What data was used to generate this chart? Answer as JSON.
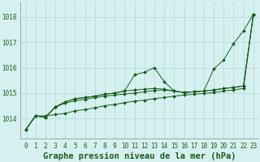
{
  "xlabel": "Graphe pression niveau de la mer (hPa)",
  "xlim": [
    -0.5,
    23.5
  ],
  "ylim": [
    1013.2,
    1018.6
  ],
  "yticks": [
    1014,
    1015,
    1016,
    1017,
    1018
  ],
  "xticks": [
    0,
    1,
    2,
    3,
    4,
    5,
    6,
    7,
    8,
    9,
    10,
    11,
    12,
    13,
    14,
    15,
    16,
    17,
    18,
    19,
    20,
    21,
    22,
    23
  ],
  "background_color": "#d6f0f0",
  "grid_color": "#afd8d8",
  "line_color": "#1a5c1a",
  "series": [
    [
      1013.55,
      1014.1,
      1014.1,
      1014.15,
      1014.2,
      1014.3,
      1014.35,
      1014.42,
      1014.5,
      1014.55,
      1014.62,
      1014.68,
      1014.72,
      1014.78,
      1014.82,
      1014.88,
      1014.92,
      1014.95,
      1014.98,
      1015.02,
      1015.08,
      1015.12,
      1015.18,
      1018.1
    ],
    [
      1013.55,
      1014.1,
      1014.05,
      1014.45,
      1014.6,
      1014.7,
      1014.75,
      1014.82,
      1014.88,
      1014.92,
      1014.96,
      1015.0,
      1015.05,
      1015.1,
      1015.12,
      1015.08,
      1015.02,
      1015.05,
      1015.08,
      1015.12,
      1015.18,
      1015.22,
      1015.28,
      1018.1
    ],
    [
      1013.55,
      1014.1,
      1014.05,
      1014.45,
      1014.65,
      1014.78,
      1014.82,
      1014.88,
      1014.95,
      1015.0,
      1015.08,
      1015.72,
      1015.82,
      1016.0,
      1015.45,
      1015.08,
      1015.02,
      1015.05,
      1015.08,
      1015.95,
      1016.3,
      1016.95,
      1017.45,
      1018.1
    ],
    [
      1013.55,
      1014.1,
      1014.05,
      1014.45,
      1014.65,
      1014.78,
      1014.82,
      1014.88,
      1014.95,
      1015.0,
      1015.08,
      1015.12,
      1015.15,
      1015.18,
      1015.15,
      1015.08,
      1015.02,
      1015.05,
      1015.08,
      1015.12,
      1015.18,
      1015.22,
      1015.28,
      1018.1
    ]
  ],
  "font_color": "#1a5c1a",
  "tick_fontsize": 5.5,
  "label_fontsize": 7.5
}
